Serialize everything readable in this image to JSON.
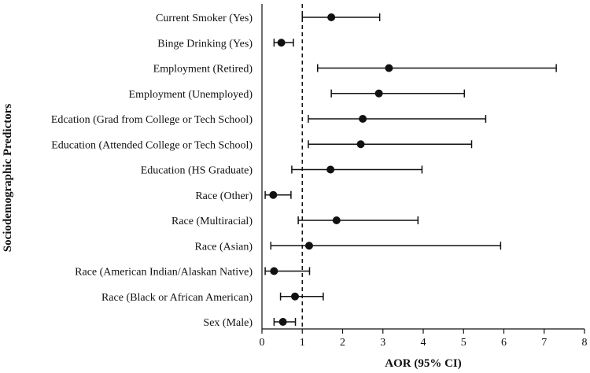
{
  "chart_data": {
    "type": "forest",
    "xlabel": "AOR (95% CI)",
    "ylabel": "Sociodemographic Predictors",
    "xlim": [
      0,
      8
    ],
    "xticks": [
      0,
      1,
      2,
      3,
      4,
      5,
      6,
      7,
      8
    ],
    "reference_line": 1,
    "grid": false,
    "rows": [
      {
        "label": "Current Smoker (Yes)",
        "aor": 1.72,
        "lo": 1.0,
        "hi": 2.92
      },
      {
        "label": "Binge Drinking (Yes)",
        "aor": 0.48,
        "lo": 0.3,
        "hi": 0.78
      },
      {
        "label": "Employment (Retired)",
        "aor": 3.15,
        "lo": 1.38,
        "hi": 7.3
      },
      {
        "label": "Employment (Unemployed)",
        "aor": 2.9,
        "lo": 1.72,
        "hi": 5.02
      },
      {
        "label": "Edcation (Grad from College or Tech School)",
        "aor": 2.5,
        "lo": 1.15,
        "hi": 5.55
      },
      {
        "label": "Education (Attended College or Tech School)",
        "aor": 2.45,
        "lo": 1.15,
        "hi": 5.2
      },
      {
        "label": "Education (HS Graduate)",
        "aor": 1.7,
        "lo": 0.74,
        "hi": 3.97
      },
      {
        "label": "Race (Other)",
        "aor": 0.28,
        "lo": 0.08,
        "hi": 0.72
      },
      {
        "label": "Race (Multiracial)",
        "aor": 1.85,
        "lo": 0.9,
        "hi": 3.87
      },
      {
        "label": "Race (Asian)",
        "aor": 1.17,
        "lo": 0.22,
        "hi": 5.92
      },
      {
        "label": "Race (American Indian/Alaskan Native)",
        "aor": 0.3,
        "lo": 0.08,
        "hi": 1.18
      },
      {
        "label": "Race (Black or African American)",
        "aor": 0.82,
        "lo": 0.46,
        "hi": 1.52
      },
      {
        "label": "Sex (Male)",
        "aor": 0.52,
        "lo": 0.3,
        "hi": 0.83
      }
    ]
  }
}
